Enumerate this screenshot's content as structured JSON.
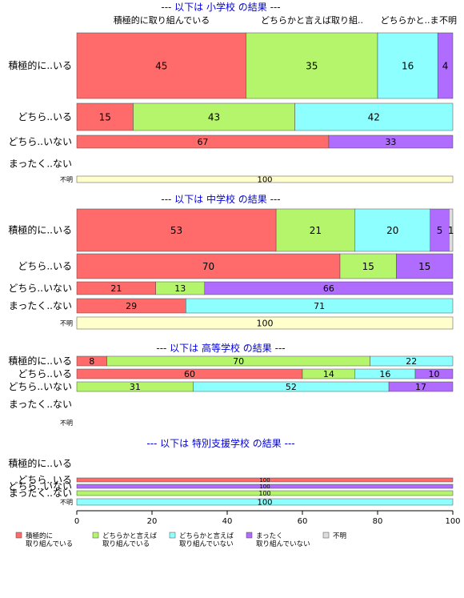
{
  "chart_data": {
    "type": "bar",
    "orientation": "horizontal",
    "stacked": "percent",
    "xlim": [
      0,
      100
    ],
    "xticks": [
      0,
      20,
      40,
      60,
      80,
      100
    ],
    "top_labels": [
      "積極的に取り組んでいる",
      "どちらかと言えば取り組..",
      "どちらかと..ま",
      "不明"
    ],
    "colors": [
      "#ff6b6b",
      "#b5f56b",
      "#8effff",
      "#b06bff",
      "#dddddd",
      "#ffffcc"
    ],
    "legend": {
      "position": "bottom",
      "items": [
        {
          "lines": [
            "積極的に",
            "取り組んでいる"
          ],
          "color": "#ff6b6b"
        },
        {
          "lines": [
            "どちらかと言えば",
            "取り組んでいる"
          ],
          "color": "#b5f56b"
        },
        {
          "lines": [
            "どちらかと言えば",
            "取り組んでいない"
          ],
          "color": "#8effff"
        },
        {
          "lines": [
            "まったく",
            "取り組んでいない"
          ],
          "color": "#b06bff"
        },
        {
          "lines": [
            "不明"
          ],
          "color": "#dddddd"
        }
      ]
    },
    "panels": [
      {
        "title": "--- 以下は 小学校 の結果 ---",
        "rows": [
          {
            "label": "積極的に..いる",
            "segments": [
              45,
              35,
              16,
              4
            ]
          },
          {
            "label": "どちら..いる",
            "segments": [
              15,
              43,
              42
            ]
          },
          {
            "label": "どちら..いない",
            "segments": [
              67,
              0,
              0,
              33
            ]
          },
          {
            "label": "まったく..ない",
            "segments": []
          },
          {
            "label": "不明",
            "segments": [
              0,
              0,
              0,
              0,
              0,
              100
            ]
          }
        ]
      },
      {
        "title": "--- 以下は 中学校 の結果 ---",
        "rows": [
          {
            "label": "積極的に..いる",
            "segments": [
              53,
              21,
              20,
              5,
              1
            ]
          },
          {
            "label": "どちら..いる",
            "segments": [
              70,
              15,
              0,
              15
            ]
          },
          {
            "label": "どちら..いない",
            "segments": [
              21,
              13,
              0,
              66
            ]
          },
          {
            "label": "まったく..ない",
            "segments": [
              29,
              0,
              71
            ]
          },
          {
            "label": "不明",
            "segments": [
              0,
              0,
              0,
              0,
              0,
              100
            ]
          }
        ]
      },
      {
        "title": "--- 以下は 高等学校 の結果 ---",
        "rows": [
          {
            "label": "積極的に..いる",
            "segments": [
              8,
              70,
              22
            ]
          },
          {
            "label": "どちら..いる",
            "segments": [
              60,
              14,
              16,
              10
            ]
          },
          {
            "label": "どちら..いない",
            "segments": [
              0,
              31,
              52,
              17
            ]
          },
          {
            "label": "まったく..ない",
            "segments": []
          },
          {
            "label": "不明",
            "segments": []
          }
        ]
      },
      {
        "title": "--- 以下は 特別支援学校 の結果 ---",
        "rows": [
          {
            "label": "積極的に..いる",
            "segments": []
          },
          {
            "label": "どちら..いる",
            "segments": [
              100
            ]
          },
          {
            "label": "どちら..いない",
            "segments": [
              0,
              0,
              0,
              100
            ]
          },
          {
            "label": "まったく..ない",
            "segments": [
              0,
              100
            ]
          },
          {
            "label": "不明",
            "segments": [
              0,
              0,
              100
            ]
          }
        ]
      }
    ]
  }
}
